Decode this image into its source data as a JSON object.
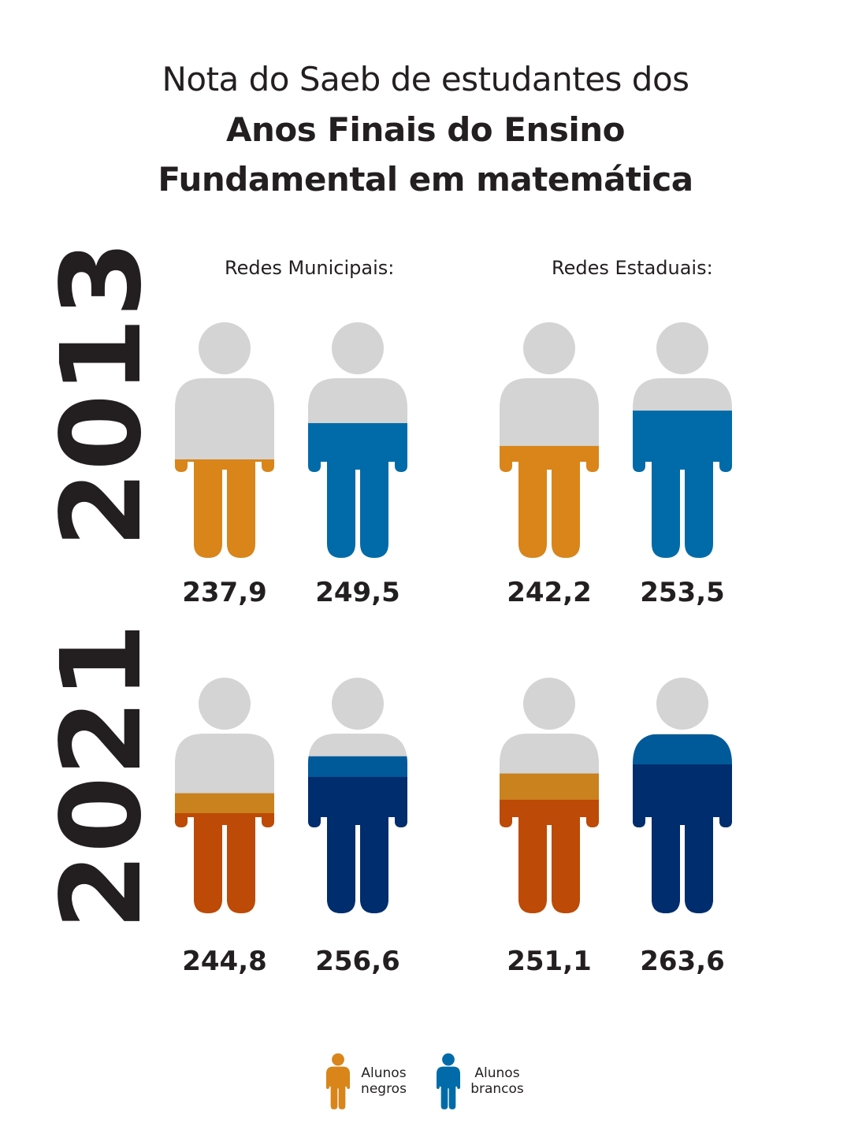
{
  "title": {
    "line1": "Nota do Saeb de estudantes dos",
    "line2": "Anos Finais do Ensino",
    "line3": "Fundamental em matemática"
  },
  "groups": [
    "Redes Municipais:",
    "Redes Estaduais:"
  ],
  "years": [
    "2013",
    "2021"
  ],
  "colors": {
    "silhouette": "#d4d4d4",
    "negros_2013": "#d9851a",
    "brancos_2013": "#006ba8",
    "negros_2021": "#bd4a06",
    "brancos_2021": "#002d6d"
  },
  "chart_data": {
    "type": "bar",
    "title": "Nota do Saeb de estudantes dos Anos Finais do Ensino Fundamental em matemática",
    "categories": [
      "Redes Municipais",
      "Redes Estaduais"
    ],
    "series": [
      {
        "name": "Alunos negros",
        "year": "2013",
        "values": [
          237.9,
          242.2
        ]
      },
      {
        "name": "Alunos brancos",
        "year": "2013",
        "values": [
          249.5,
          253.5
        ]
      },
      {
        "name": "Alunos negros",
        "year": "2021",
        "values": [
          244.8,
          251.1
        ]
      },
      {
        "name": "Alunos brancos",
        "year": "2021",
        "values": [
          256.6,
          263.6
        ]
      }
    ],
    "value_labels": {
      "2013": [
        "237,9",
        "249,5",
        "242,2",
        "253,5"
      ],
      "2021": [
        "244,8",
        "256,6",
        "251,1",
        "263,6"
      ]
    },
    "legend": [
      {
        "line1": "Alunos",
        "line2": "negros",
        "icon": "person-icon",
        "color": "#d9851a"
      },
      {
        "line1": "Alunos",
        "line2": "brancos",
        "icon": "person-icon",
        "color": "#006ba8"
      }
    ]
  }
}
